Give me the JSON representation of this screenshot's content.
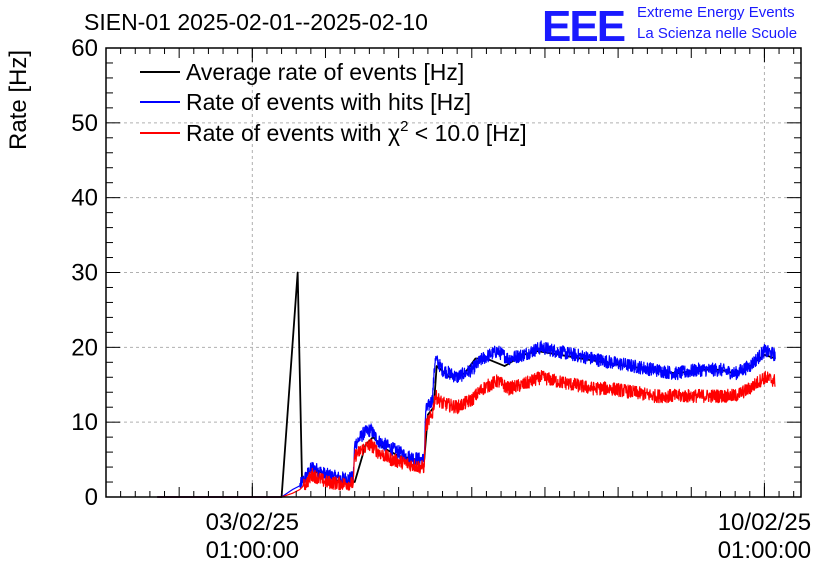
{
  "header": {
    "title": "SIEN-01 2025-02-01--2025-02-10",
    "logo_text": "EEE",
    "logo_line1": "Extreme Energy Events",
    "logo_line2": "La Scienza nelle Scuole"
  },
  "chart_data": {
    "type": "line",
    "ylabel": "Rate [Hz]",
    "ylim": [
      0,
      60
    ],
    "yticks": [
      "0",
      "10",
      "20",
      "30",
      "40",
      "50",
      "60"
    ],
    "xlim_days": [
      0.0,
      9.5
    ],
    "xticks": [
      {
        "day": 2.0,
        "line1": "03/02/25",
        "line2": "01:00:00"
      },
      {
        "day": 9.0,
        "line1": "10/02/25",
        "line2": "01:00:00"
      }
    ],
    "grid": true,
    "legend_position": "top-left",
    "legend": [
      {
        "name": "Average rate of events [Hz]",
        "color": "#000000"
      },
      {
        "name": "Rate of events with hits [Hz]",
        "color": "#0000ff"
      },
      {
        "name_prefix": "Rate of events with ",
        "name_symbol": "χ",
        "name_sup": "2",
        "name_suffix": " < 10.0 [Hz]",
        "color": "#ff0000"
      }
    ],
    "series": [
      {
        "color": "#000000",
        "points": [
          [
            0.7,
            0
          ],
          [
            2.4,
            0
          ],
          [
            2.62,
            30
          ],
          [
            2.68,
            2
          ],
          [
            2.9,
            3.5
          ],
          [
            3.2,
            2
          ],
          [
            3.4,
            2
          ],
          [
            3.55,
            7
          ],
          [
            3.65,
            8
          ],
          [
            3.8,
            6.5
          ],
          [
            4.0,
            5.5
          ],
          [
            4.25,
            5
          ],
          [
            4.35,
            5
          ],
          [
            4.4,
            11
          ],
          [
            4.48,
            12
          ],
          [
            4.52,
            17.5
          ],
          [
            4.7,
            16
          ],
          [
            4.9,
            16.5
          ],
          [
            5.05,
            18.5
          ],
          [
            5.2,
            18.5
          ],
          [
            5.45,
            17.5
          ],
          [
            5.7,
            19
          ],
          [
            5.9,
            19.5
          ],
          [
            6.2,
            19
          ],
          [
            6.5,
            18.5
          ],
          [
            6.8,
            18
          ],
          [
            7.1,
            17.5
          ],
          [
            7.5,
            17
          ],
          [
            7.8,
            16.5
          ],
          [
            8.1,
            17
          ],
          [
            8.4,
            17
          ],
          [
            8.6,
            16.5
          ],
          [
            8.8,
            17.5
          ],
          [
            9.0,
            19
          ],
          [
            9.15,
            18.5
          ]
        ]
      },
      {
        "color": "#0000ff",
        "points": [
          [
            0.7,
            0
          ],
          [
            2.4,
            0
          ],
          [
            2.55,
            1
          ],
          [
            2.65,
            1.5
          ],
          [
            2.75,
            3
          ],
          [
            2.82,
            4
          ],
          [
            3.0,
            3
          ],
          [
            3.2,
            2.5
          ],
          [
            3.38,
            2.5
          ],
          [
            3.4,
            7
          ],
          [
            3.52,
            8.5
          ],
          [
            3.62,
            9
          ],
          [
            3.72,
            7.5
          ],
          [
            3.9,
            6.5
          ],
          [
            4.1,
            5.5
          ],
          [
            4.3,
            5
          ],
          [
            4.35,
            5
          ],
          [
            4.37,
            11.5
          ],
          [
            4.46,
            13
          ],
          [
            4.5,
            18.5
          ],
          [
            4.6,
            17
          ],
          [
            4.8,
            16
          ],
          [
            5.0,
            17
          ],
          [
            5.15,
            18.5
          ],
          [
            5.35,
            19.5
          ],
          [
            5.5,
            18.5
          ],
          [
            5.7,
            19
          ],
          [
            5.95,
            20
          ],
          [
            6.15,
            19.5
          ],
          [
            6.4,
            19
          ],
          [
            6.65,
            18.5
          ],
          [
            6.9,
            18
          ],
          [
            7.2,
            17.5
          ],
          [
            7.5,
            17
          ],
          [
            7.8,
            16.5
          ],
          [
            8.1,
            17
          ],
          [
            8.4,
            17
          ],
          [
            8.6,
            16.5
          ],
          [
            8.8,
            17.5
          ],
          [
            9.0,
            19.5
          ],
          [
            9.15,
            19
          ]
        ],
        "noise": 0.9
      },
      {
        "color": "#ff0000",
        "points": [
          [
            0.7,
            0
          ],
          [
            2.4,
            0
          ],
          [
            2.55,
            0.5
          ],
          [
            2.65,
            1
          ],
          [
            2.75,
            2
          ],
          [
            2.82,
            3
          ],
          [
            3.0,
            2
          ],
          [
            3.2,
            1.8
          ],
          [
            3.38,
            1.8
          ],
          [
            3.4,
            5.5
          ],
          [
            3.52,
            6.5
          ],
          [
            3.62,
            7
          ],
          [
            3.72,
            6
          ],
          [
            3.9,
            5
          ],
          [
            4.1,
            4.5
          ],
          [
            4.3,
            4
          ],
          [
            4.35,
            4
          ],
          [
            4.37,
            9.5
          ],
          [
            4.46,
            11
          ],
          [
            4.5,
            13.5
          ],
          [
            4.6,
            12.5
          ],
          [
            4.8,
            12
          ],
          [
            5.0,
            13
          ],
          [
            5.15,
            14.5
          ],
          [
            5.35,
            15.5
          ],
          [
            5.5,
            14.5
          ],
          [
            5.7,
            15
          ],
          [
            5.95,
            16
          ],
          [
            6.15,
            15.5
          ],
          [
            6.4,
            15
          ],
          [
            6.65,
            14.5
          ],
          [
            6.9,
            14.5
          ],
          [
            7.2,
            14
          ],
          [
            7.5,
            13.5
          ],
          [
            7.8,
            13.5
          ],
          [
            8.1,
            13.5
          ],
          [
            8.4,
            13.5
          ],
          [
            8.6,
            13.5
          ],
          [
            8.8,
            14.5
          ],
          [
            9.0,
            16
          ],
          [
            9.15,
            15.5
          ]
        ],
        "noise": 0.9
      }
    ]
  }
}
